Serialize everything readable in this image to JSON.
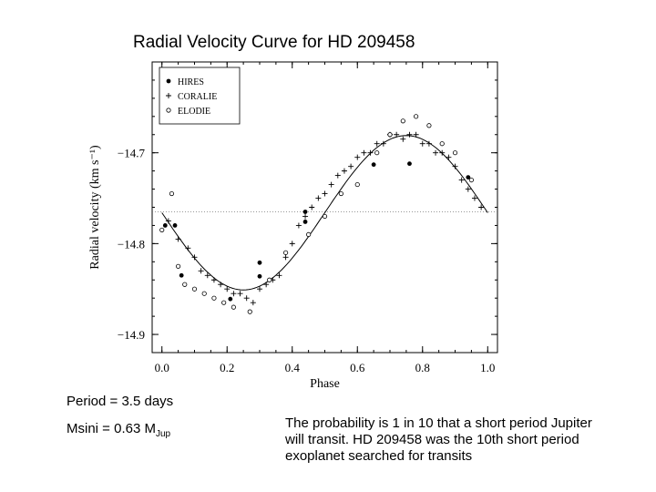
{
  "slide": {
    "title": "Radial Velocity Curve for HD 209458",
    "period": "Period = 3.5 days",
    "msini_prefix": "Msini  = 0.63 M",
    "msini_sub": "Jup",
    "probability": "The probability is 1 in 10 that a short period Jupiter will transit. HD 209458 was the 10th short period exoplanet searched for transits"
  },
  "chart_data": {
    "type": "scatter",
    "title": "",
    "xlabel": "Phase",
    "ylabel": "Radial velocity (km s⁻¹)",
    "xlim": [
      -0.03,
      1.03
    ],
    "ylim": [
      -14.92,
      -14.6
    ],
    "xticks": [
      0.0,
      0.2,
      0.4,
      0.6,
      0.8,
      1.0
    ],
    "xtick_labels": [
      "0.0",
      "0.2",
      "0.4",
      "0.6",
      "0.8",
      "1.0"
    ],
    "yticks": [
      -14.7,
      -14.8,
      -14.9
    ],
    "ytick_labels": [
      "−14.7",
      "−14.8",
      "−14.9"
    ],
    "systemic_velocity": -14.765,
    "legend_position": "top-left",
    "fit": {
      "type": "sine",
      "gamma": -14.766,
      "amplitude": 0.085,
      "phase_max": 0.75
    },
    "series": [
      {
        "name": "HIRES",
        "marker": "filled-circle",
        "x": [
          0.01,
          0.04,
          0.06,
          0.21,
          0.3,
          0.3,
          0.44,
          0.44,
          0.65,
          0.76,
          0.94
        ],
        "y": [
          -14.78,
          -14.78,
          -14.835,
          -14.861,
          -14.821,
          -14.836,
          -14.765,
          -14.776,
          -14.713,
          -14.712,
          -14.727
        ]
      },
      {
        "name": "CORALIE",
        "marker": "plus",
        "x": [
          0.02,
          0.05,
          0.08,
          0.1,
          0.12,
          0.14,
          0.16,
          0.18,
          0.2,
          0.22,
          0.24,
          0.26,
          0.28,
          0.3,
          0.32,
          0.34,
          0.36,
          0.38,
          0.4,
          0.42,
          0.44,
          0.46,
          0.48,
          0.5,
          0.52,
          0.54,
          0.56,
          0.58,
          0.6,
          0.62,
          0.64,
          0.66,
          0.68,
          0.7,
          0.72,
          0.74,
          0.76,
          0.78,
          0.8,
          0.82,
          0.84,
          0.86,
          0.88,
          0.9,
          0.92,
          0.94,
          0.96,
          0.98
        ],
        "y": [
          -14.775,
          -14.795,
          -14.805,
          -14.815,
          -14.83,
          -14.835,
          -14.84,
          -14.845,
          -14.85,
          -14.855,
          -14.855,
          -14.86,
          -14.865,
          -14.85,
          -14.845,
          -14.84,
          -14.835,
          -14.815,
          -14.8,
          -14.78,
          -14.77,
          -14.76,
          -14.75,
          -14.745,
          -14.735,
          -14.725,
          -14.72,
          -14.715,
          -14.705,
          -14.7,
          -14.7,
          -14.69,
          -14.69,
          -14.68,
          -14.68,
          -14.685,
          -14.68,
          -14.68,
          -14.69,
          -14.69,
          -14.7,
          -14.7,
          -14.705,
          -14.715,
          -14.73,
          -14.74,
          -14.75,
          -14.76
        ]
      },
      {
        "name": "ELODIE",
        "marker": "open-circle",
        "x": [
          0.0,
          0.03,
          0.05,
          0.07,
          0.1,
          0.13,
          0.16,
          0.19,
          0.22,
          0.27,
          0.33,
          0.38,
          0.45,
          0.5,
          0.55,
          0.6,
          0.66,
          0.7,
          0.74,
          0.78,
          0.82,
          0.86,
          0.9,
          0.95
        ],
        "y": [
          -14.785,
          -14.745,
          -14.825,
          -14.845,
          -14.85,
          -14.855,
          -14.86,
          -14.865,
          -14.87,
          -14.875,
          -14.84,
          -14.81,
          -14.79,
          -14.77,
          -14.745,
          -14.735,
          -14.7,
          -14.68,
          -14.665,
          -14.66,
          -14.67,
          -14.69,
          -14.7,
          -14.73
        ]
      }
    ]
  }
}
